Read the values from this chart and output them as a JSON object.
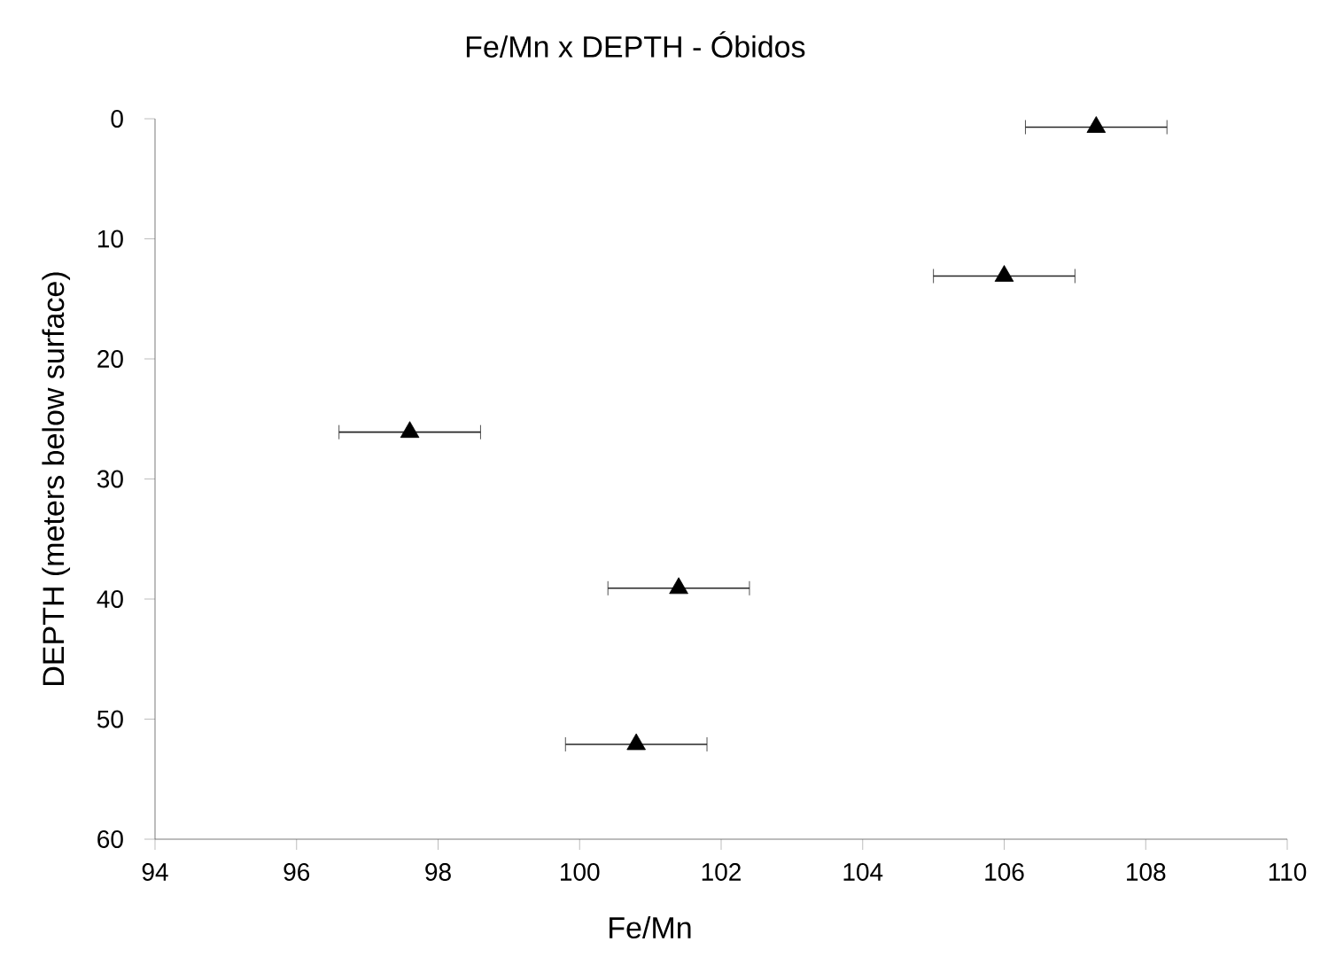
{
  "chart_data": {
    "type": "scatter",
    "title": "Fe/Mn x DEPTH - Óbidos",
    "xlabel": "Fe/Mn",
    "ylabel": "DEPTH (meters below surface)",
    "x": [
      107.3,
      106.0,
      97.6,
      101.4,
      100.8
    ],
    "values": [
      0.7,
      13.1,
      26.1,
      39.1,
      52.1
    ],
    "xerrors": [
      1,
      1,
      1,
      1,
      1
    ],
    "color": "#000000",
    "marker": "triangle",
    "grid": false,
    "xlim": [
      94,
      110
    ],
    "xticks": [
      94,
      96,
      98,
      100,
      102,
      104,
      106,
      108,
      110
    ],
    "ylim": [
      60,
      0
    ],
    "yticks": [
      0,
      10,
      20,
      30,
      40,
      50,
      60
    ]
  }
}
